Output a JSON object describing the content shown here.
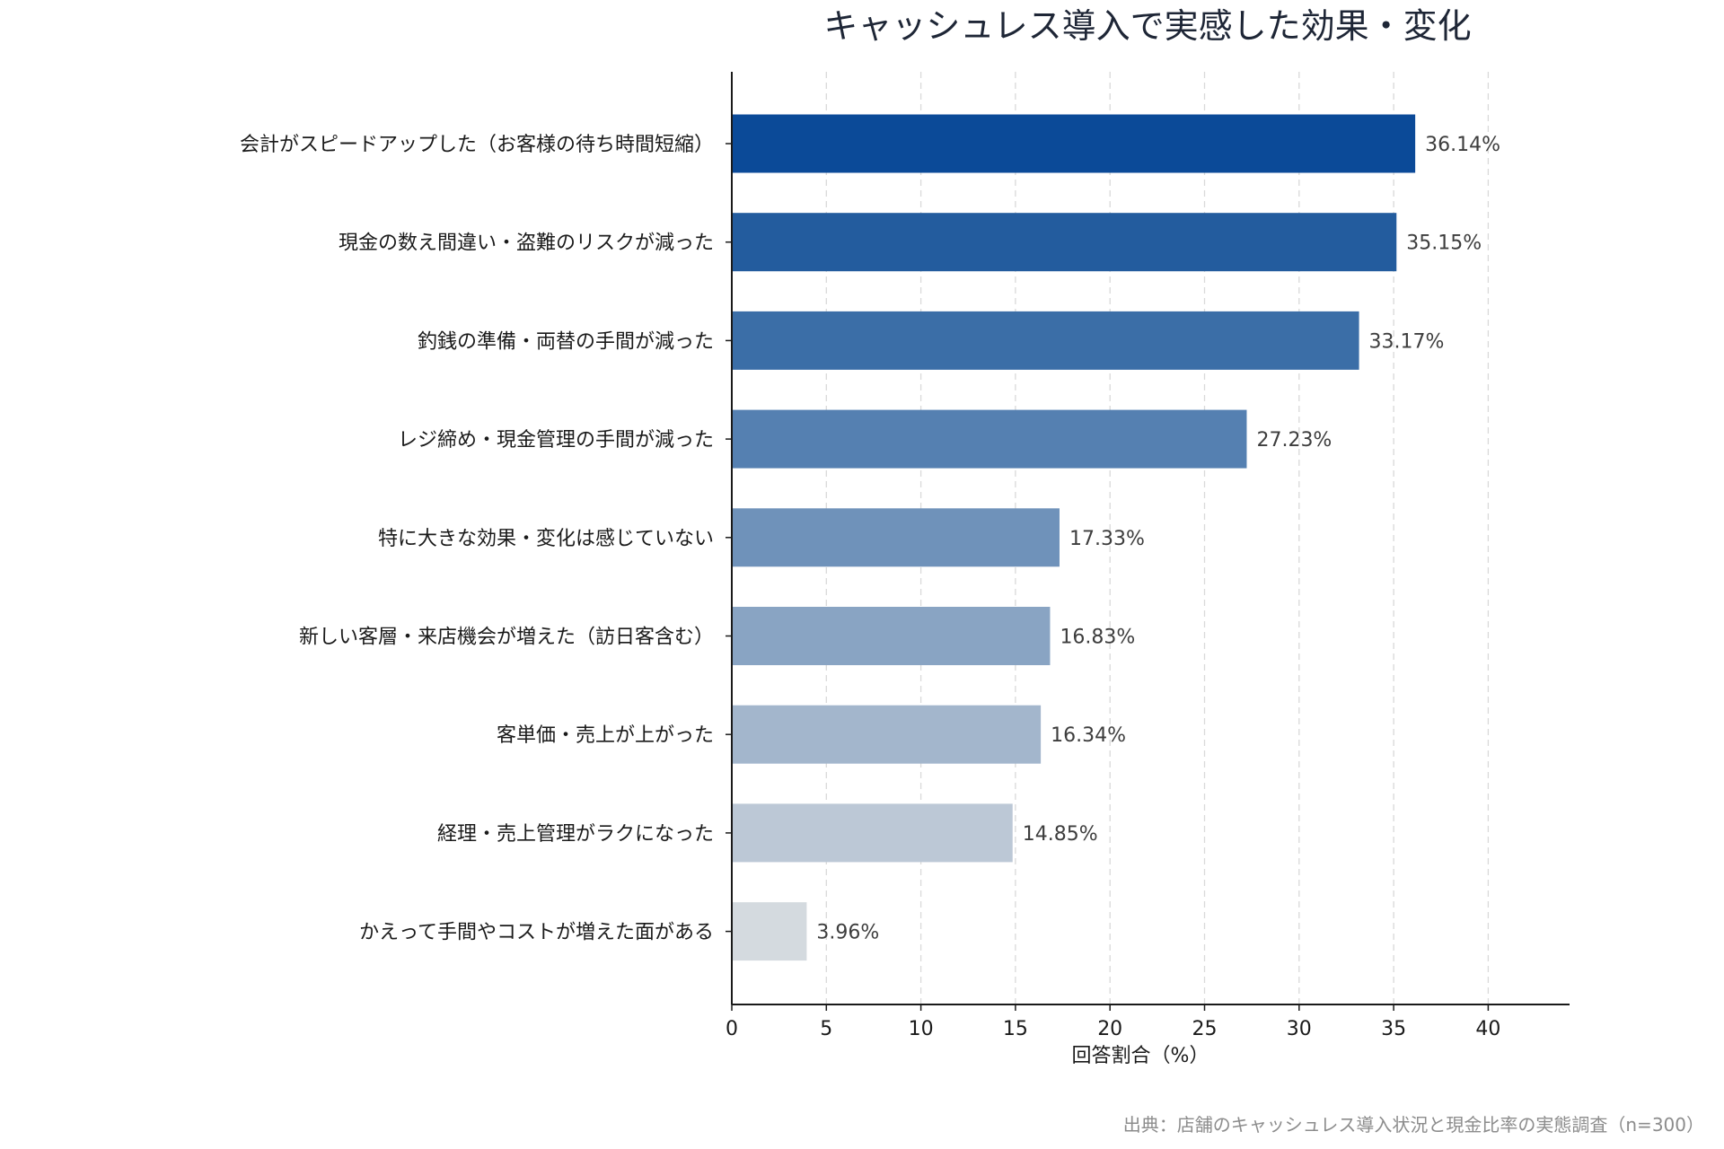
{
  "chart_data": {
    "type": "bar",
    "orientation": "horizontal",
    "title": "キャッシュレス導入で実感した効果・変化",
    "xlabel": "回答割合（%）",
    "ylabel": "",
    "xlim": [
      0,
      44
    ],
    "xticks": [
      0,
      5,
      10,
      15,
      20,
      25,
      30,
      35,
      40
    ],
    "grid": "vertical-dashed",
    "categories": [
      "会計がスピードアップした（お客様の待ち時間短縮）",
      "現金の数え間違い・盗難のリスクが減った",
      "釣銭の準備・両替の手間が減った",
      "レジ締め・現金管理の手間が減った",
      "特に大きな効果・変化は感じていない",
      "新しい客層・来店機会が増えた（訪日客含む）",
      "客単価・売上が上がった",
      "経理・売上管理がラクになった",
      "かえって手間やコストが増えた面がある"
    ],
    "values": [
      36.14,
      35.15,
      33.17,
      27.23,
      17.33,
      16.83,
      16.34,
      14.85,
      3.96
    ],
    "value_labels": [
      "36.14%",
      "35.15%",
      "33.17%",
      "27.23%",
      "17.33%",
      "16.83%",
      "16.34%",
      "14.85%",
      "3.96%"
    ],
    "colors": [
      "#0b4a98",
      "#235c9e",
      "#3b6ea7",
      "#5580b1",
      "#6f92ba",
      "#89a4c3",
      "#a3b6cc",
      "#bcc8d6",
      "#d4dadf"
    ],
    "source": "出典：店舗のキャッシュレス導入状況と現金比率の実態調査（n=300）"
  }
}
